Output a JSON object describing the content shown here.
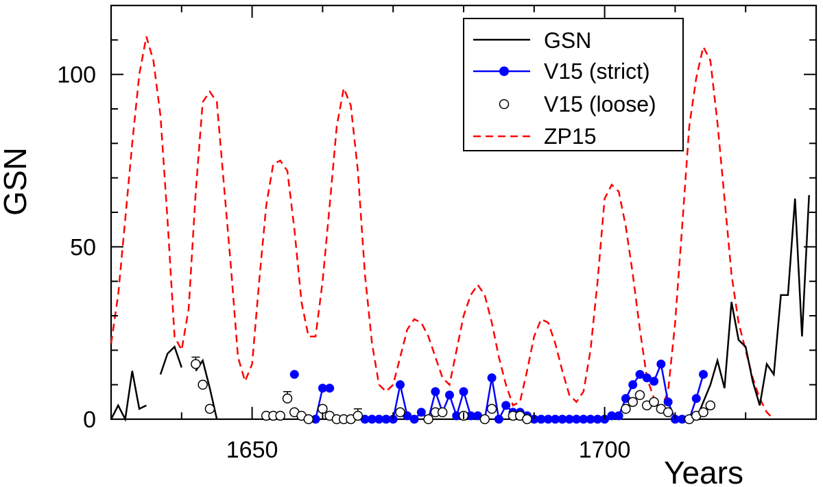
{
  "chart_data": {
    "type": "line",
    "title": "",
    "xlabel": "Years",
    "ylabel": "GSN",
    "xlim": [
      1630,
      1730
    ],
    "ylim": [
      0,
      120
    ],
    "x_ticks": [
      1650,
      1700
    ],
    "y_ticks": [
      0,
      50,
      100
    ],
    "x_tick_labels": [
      "1650",
      "1700"
    ],
    "y_tick_labels": [
      "0",
      "50",
      "100"
    ],
    "grid": false,
    "legend_position": "top-right",
    "legend": [
      "GSN",
      "V15 (strict)",
      "V15 (loose)",
      "ZP15"
    ],
    "colors": {
      "gsn": "#000000",
      "v15_strict": "#0000ff",
      "v15_loose": "#000000",
      "zp15": "#ff0000"
    },
    "series": [
      {
        "name": "GSN",
        "segments": [
          [
            [
              1630,
              0
            ],
            [
              1631,
              4
            ],
            [
              1632,
              0
            ],
            [
              1633,
              14
            ],
            [
              1634,
              3
            ],
            [
              1635,
              4
            ]
          ],
          [
            [
              1637,
              13
            ],
            [
              1638,
              19
            ],
            [
              1639,
              21
            ],
            [
              1640,
              15
            ]
          ],
          [
            [
              1642,
              14
            ],
            [
              1643,
              17
            ],
            [
              1644,
              9
            ],
            [
              1645,
              0
            ]
          ],
          [
            [
              1713,
              0
            ],
            [
              1714,
              5
            ],
            [
              1715,
              10
            ],
            [
              1716,
              17
            ],
            [
              1717,
              9
            ],
            [
              1718,
              34
            ],
            [
              1719,
              23
            ],
            [
              1720,
              21
            ],
            [
              1721,
              11
            ],
            [
              1722,
              4
            ],
            [
              1723,
              16
            ],
            [
              1724,
              13
            ],
            [
              1725,
              36
            ],
            [
              1726,
              36
            ],
            [
              1727,
              64
            ],
            [
              1728,
              24
            ],
            [
              1729,
              65
            ]
          ]
        ]
      },
      {
        "name": "V15 (strict)",
        "segments": [
          [
            [
              1656,
              13
            ]
          ],
          [
            [
              1659,
              0
            ],
            [
              1660,
              9
            ],
            [
              1661,
              9
            ]
          ],
          [
            [
              1666,
              0
            ],
            [
              1667,
              0
            ],
            [
              1668,
              0
            ],
            [
              1669,
              0
            ],
            [
              1670,
              0
            ],
            [
              1671,
              10
            ],
            [
              1672,
              1
            ],
            [
              1673,
              0
            ],
            [
              1674,
              2
            ],
            [
              1675,
              0
            ],
            [
              1676,
              8
            ],
            [
              1677,
              2
            ],
            [
              1678,
              7
            ],
            [
              1679,
              1
            ],
            [
              1680,
              8
            ],
            [
              1681,
              1
            ],
            [
              1682,
              1
            ],
            [
              1683,
              0
            ],
            [
              1684,
              12
            ],
            [
              1685,
              0
            ],
            [
              1686,
              4
            ],
            [
              1687,
              2
            ],
            [
              1688,
              2
            ],
            [
              1689,
              1
            ],
            [
              1690,
              0
            ],
            [
              1691,
              0
            ],
            [
              1692,
              0
            ],
            [
              1693,
              0
            ],
            [
              1694,
              0
            ],
            [
              1695,
              0
            ],
            [
              1696,
              0
            ],
            [
              1697,
              0
            ],
            [
              1698,
              0
            ],
            [
              1699,
              0
            ],
            [
              1700,
              0
            ],
            [
              1701,
              1
            ],
            [
              1702,
              1
            ],
            [
              1703,
              6
            ],
            [
              1704,
              10
            ],
            [
              1705,
              13
            ],
            [
              1706,
              12
            ],
            [
              1707,
              11
            ],
            [
              1708,
              16
            ],
            [
              1709,
              5
            ],
            [
              1710,
              0
            ],
            [
              1711,
              0
            ],
            [
              1712,
              0
            ],
            [
              1713,
              6
            ],
            [
              1714,
              13
            ]
          ]
        ]
      },
      {
        "name": "V15 (loose)",
        "points": [
          [
            1642,
            16
          ],
          [
            1643,
            10
          ],
          [
            1644,
            3
          ],
          [
            1652,
            1
          ],
          [
            1653,
            1
          ],
          [
            1654,
            1
          ],
          [
            1655,
            6
          ],
          [
            1656,
            2
          ],
          [
            1657,
            1
          ],
          [
            1658,
            0
          ],
          [
            1660,
            3
          ],
          [
            1661,
            1
          ],
          [
            1662,
            0
          ],
          [
            1663,
            0
          ],
          [
            1664,
            0
          ],
          [
            1665,
            1
          ],
          [
            1671,
            2
          ],
          [
            1675,
            0
          ],
          [
            1676,
            2
          ],
          [
            1677,
            2
          ],
          [
            1680,
            1
          ],
          [
            1683,
            0
          ],
          [
            1684,
            3
          ],
          [
            1687,
            1
          ],
          [
            1688,
            1
          ],
          [
            1689,
            0
          ],
          [
            1703,
            3
          ],
          [
            1704,
            5
          ],
          [
            1705,
            7
          ],
          [
            1706,
            4
          ],
          [
            1707,
            5
          ],
          [
            1708,
            3
          ],
          [
            1709,
            2
          ],
          [
            1712,
            0
          ],
          [
            1713,
            1
          ],
          [
            1714,
            2
          ],
          [
            1715,
            4
          ]
        ],
        "error_bars": [
          [
            1642,
            16,
            18
          ],
          [
            1655,
            6,
            8
          ],
          [
            1665,
            1,
            3
          ]
        ]
      },
      {
        "name": "ZP15",
        "segments": [
          [
            [
              1630,
              22
            ],
            [
              1631,
              36
            ],
            [
              1632,
              58
            ],
            [
              1633,
              80
            ],
            [
              1634,
              100
            ],
            [
              1635,
              111
            ],
            [
              1636,
              104
            ],
            [
              1637,
              88
            ],
            [
              1638,
              58
            ],
            [
              1639,
              24
            ],
            [
              1640,
              20
            ],
            [
              1641,
              32
            ],
            [
              1642,
              66
            ],
            [
              1643,
              92
            ],
            [
              1644,
              95
            ],
            [
              1645,
              92
            ],
            [
              1646,
              68
            ],
            [
              1647,
              44
            ],
            [
              1648,
              18
            ],
            [
              1649,
              11
            ],
            [
              1650,
              16
            ],
            [
              1651,
              40
            ],
            [
              1652,
              62
            ],
            [
              1653,
              74
            ],
            [
              1654,
              75
            ],
            [
              1655,
              72
            ],
            [
              1656,
              55
            ],
            [
              1657,
              34
            ],
            [
              1658,
              24
            ],
            [
              1659,
              24
            ],
            [
              1660,
              40
            ],
            [
              1661,
              62
            ],
            [
              1662,
              85
            ],
            [
              1663,
              96
            ],
            [
              1664,
              91
            ],
            [
              1665,
              72
            ],
            [
              1666,
              42
            ],
            [
              1667,
              22
            ],
            [
              1668,
              10
            ],
            [
              1669,
              8
            ],
            [
              1670,
              10
            ],
            [
              1671,
              18
            ],
            [
              1672,
              26
            ],
            [
              1673,
              29
            ],
            [
              1674,
              28
            ],
            [
              1675,
              24
            ],
            [
              1676,
              18
            ],
            [
              1677,
              12
            ],
            [
              1678,
              10
            ],
            [
              1679,
              20
            ],
            [
              1680,
              30
            ],
            [
              1681,
              36
            ],
            [
              1682,
              39
            ],
            [
              1683,
              36
            ],
            [
              1684,
              28
            ],
            [
              1685,
              18
            ],
            [
              1686,
              10
            ],
            [
              1687,
              4
            ],
            [
              1688,
              5
            ],
            [
              1689,
              14
            ],
            [
              1690,
              24
            ],
            [
              1691,
              29
            ],
            [
              1692,
              28
            ],
            [
              1693,
              22
            ],
            [
              1694,
              14
            ],
            [
              1695,
              7
            ],
            [
              1696,
              5
            ],
            [
              1697,
              8
            ],
            [
              1698,
              20
            ],
            [
              1699,
              40
            ],
            [
              1700,
              64
            ],
            [
              1701,
              68
            ],
            [
              1702,
              66
            ],
            [
              1703,
              56
            ],
            [
              1704,
              42
            ],
            [
              1705,
              26
            ],
            [
              1706,
              12
            ],
            [
              1707,
              6
            ],
            [
              1708,
              3
            ],
            [
              1709,
              8
            ],
            [
              1710,
              28
            ],
            [
              1711,
              56
            ],
            [
              1712,
              85
            ],
            [
              1713,
              99
            ],
            [
              1714,
              108
            ],
            [
              1715,
              104
            ],
            [
              1716,
              86
            ],
            [
              1717,
              64
            ],
            [
              1718,
              42
            ],
            [
              1719,
              28
            ],
            [
              1720,
              20
            ],
            [
              1721,
              12
            ],
            [
              1722,
              6
            ],
            [
              1723,
              2
            ],
            [
              1724,
              0
            ]
          ]
        ]
      }
    ]
  }
}
